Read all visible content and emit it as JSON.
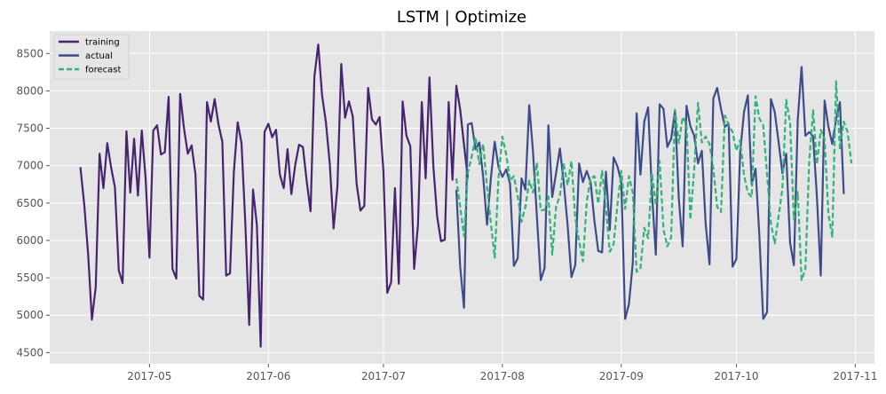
{
  "chart_data": {
    "type": "line",
    "title": "LSTM  |  Optimize",
    "xlabel": "",
    "ylabel": "",
    "x_type": "date",
    "xlim": [
      "2017-04-05",
      "2017-11-06"
    ],
    "ylim": [
      4350,
      8800
    ],
    "x_ticks": [
      {
        "date": "2017-05-01",
        "label": "2017-05"
      },
      {
        "date": "2017-06-01",
        "label": "2017-06"
      },
      {
        "date": "2017-07-01",
        "label": "2017-07"
      },
      {
        "date": "2017-08-01",
        "label": "2017-08"
      },
      {
        "date": "2017-09-01",
        "label": "2017-09"
      },
      {
        "date": "2017-10-01",
        "label": "2017-10"
      },
      {
        "date": "2017-11-01",
        "label": "2017-11"
      }
    ],
    "y_ticks": [
      4500,
      5000,
      5500,
      6000,
      6500,
      7000,
      7500,
      8000,
      8500
    ],
    "grid": true,
    "legend_position": "top-left",
    "series": [
      {
        "name": "training",
        "color": "#46246f",
        "style": "solid",
        "start_date": "2017-04-13",
        "values": [
          6980,
          6480,
          5830,
          4940,
          5380,
          7160,
          6700,
          7300,
          6980,
          6710,
          5600,
          5430,
          7460,
          6640,
          7360,
          6600,
          7470,
          6830,
          5770,
          7470,
          7540,
          7150,
          7180,
          7920,
          5620,
          5490,
          7960,
          7500,
          7160,
          7270,
          6880,
          5260,
          5210,
          7850,
          7590,
          7890,
          7550,
          7320,
          5530,
          5560,
          6910,
          7580,
          7300,
          6220,
          4870,
          6680,
          6210,
          4580,
          7450,
          7560,
          7380,
          7480,
          6880,
          6700,
          7220,
          6620,
          7010,
          7280,
          7250,
          6790,
          6390,
          8190,
          8620,
          7940,
          7580,
          7030,
          6160,
          6720,
          8360,
          7640,
          7860,
          7660,
          6760,
          6400,
          6460,
          8040,
          7620,
          7550,
          7650,
          6920,
          5300,
          5440,
          6700,
          5420,
          7860,
          7400,
          7260,
          5620,
          6210,
          7850,
          6830,
          8180,
          7000,
          6320,
          5990,
          6010,
          7850,
          6810,
          8070,
          7750,
          7280,
          6830
        ]
      },
      {
        "name": "actual",
        "color": "#3d4b8a",
        "style": "solid",
        "start_date": "2017-07-20",
        "values": [
          6680,
          5650,
          5100,
          7550,
          7570,
          7220,
          7310,
          6850,
          6210,
          6830,
          7320,
          6980,
          6850,
          6950,
          6760,
          5660,
          5760,
          6830,
          6680,
          7810,
          7180,
          6320,
          5470,
          5630,
          7540,
          6580,
          6900,
          7230,
          6770,
          6210,
          5510,
          5670,
          7030,
          6780,
          6930,
          6780,
          6260,
          5860,
          5840,
          6920,
          6140,
          7110,
          6990,
          6780,
          4950,
          5150,
          5700,
          7700,
          6880,
          7590,
          7780,
          6630,
          5810,
          7820,
          7760,
          7250,
          7360,
          7730,
          6560,
          5920,
          7800,
          7530,
          7400,
          7030,
          7200,
          6220,
          5680,
          7900,
          8040,
          7760,
          7520,
          7560,
          5650,
          5750,
          7180,
          7720,
          7940,
          6750,
          6960,
          6060,
          4950,
          5040,
          7890,
          7720,
          7320,
          6900,
          7160,
          5970,
          5670,
          7610,
          8320,
          7400,
          7450,
          7390,
          6580,
          5530,
          7870,
          7520,
          7290,
          7620,
          7850,
          6620
        ]
      },
      {
        "name": "forecast",
        "color": "#2fb37a",
        "style": "dashed",
        "start_date": "2017-07-20",
        "values": [
          6830,
          6450,
          6060,
          6910,
          7120,
          7380,
          7020,
          7290,
          6720,
          6230,
          5770,
          6840,
          7390,
          7150,
          6800,
          6860,
          6590,
          6250,
          6450,
          6800,
          6640,
          7040,
          6400,
          6410,
          6590,
          5810,
          6450,
          6600,
          7020,
          6740,
          7060,
          6300,
          5990,
          5720,
          6520,
          6830,
          6860,
          6490,
          6930,
          6430,
          5850,
          5950,
          6480,
          6930,
          6420,
          6860,
          6640,
          5580,
          5630,
          6170,
          6030,
          6900,
          6470,
          7060,
          6150,
          5920,
          6040,
          7750,
          7300,
          7650,
          7560,
          6280,
          6940,
          7840,
          7310,
          7390,
          7290,
          6960,
          6450,
          6380,
          7670,
          7550,
          7450,
          7200,
          7340,
          6870,
          6640,
          6580,
          7930,
          7630,
          7540,
          6880,
          6230,
          5960,
          6320,
          6690,
          7880,
          7570,
          6280,
          6650,
          5470,
          5620,
          7070,
          7740,
          7020,
          7480,
          7360,
          6350,
          6050,
          8130,
          7220,
          7590,
          7450,
          7030
        ]
      }
    ]
  }
}
